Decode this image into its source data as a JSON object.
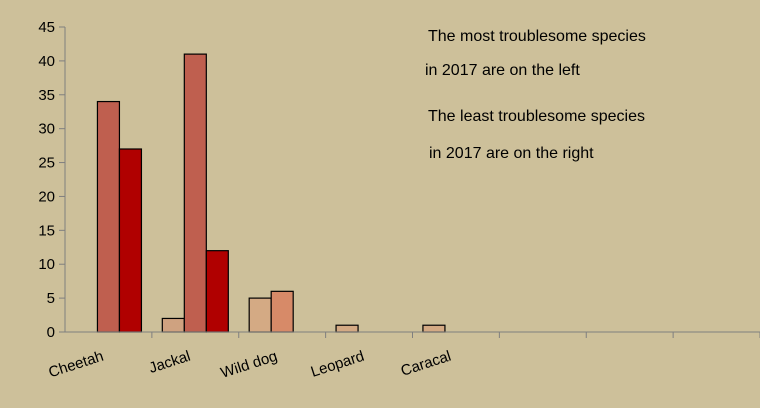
{
  "colors": {
    "background": "#cdc09a",
    "axis": "#7f7f7f",
    "bar_stroke": "#000000"
  },
  "chart_data": {
    "type": "bar",
    "title": "",
    "xlabel": "",
    "ylabel": "",
    "ylim": [
      0,
      45
    ],
    "yticks": [
      "0",
      "5",
      "10",
      "15",
      "20",
      "25",
      "30",
      "35",
      "40",
      "45"
    ],
    "grid": false,
    "categories": [
      "Cheetah",
      "Jackal",
      "Wild dog",
      "Leopard",
      "Caracal",
      "",
      "",
      ""
    ],
    "bars": [
      {
        "category": 0,
        "slot": 1,
        "value": 34,
        "color": "#bf5f4f"
      },
      {
        "category": 0,
        "slot": 2,
        "value": 27,
        "color": "#b00000"
      },
      {
        "category": 1,
        "slot": 0,
        "value": 2,
        "color": "#cfa280"
      },
      {
        "category": 1,
        "slot": 1,
        "value": 41,
        "color": "#bf5f4f"
      },
      {
        "category": 1,
        "slot": 2,
        "value": 12,
        "color": "#b00000"
      },
      {
        "category": 2,
        "slot": 0,
        "value": 5,
        "color": "#d4aa84"
      },
      {
        "category": 2,
        "slot": 1,
        "value": 6,
        "color": "#d78a68"
      },
      {
        "category": 3,
        "slot": 0,
        "value": 1,
        "color": "#d4aa84"
      },
      {
        "category": 4,
        "slot": 0,
        "value": 1,
        "color": "#d4aa84"
      }
    ],
    "annotations": [
      {
        "line1": "The most troublesome species",
        "line2": " in 2017 are on the left"
      },
      {
        "line1": "The least troublesome species",
        "line2": " in 2017 are on the right"
      }
    ]
  }
}
